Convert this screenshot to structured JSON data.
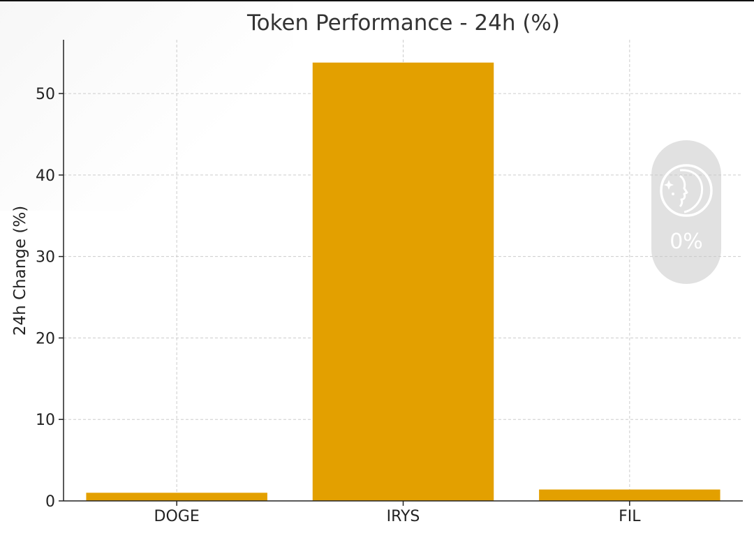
{
  "chart_data": {
    "type": "bar",
    "title": "Token Performance - 24h (%)",
    "xlabel": "",
    "ylabel": "24h Change (%)",
    "categories": [
      "DOGE",
      "IRYS",
      "FIL"
    ],
    "values": [
      1.0,
      53.8,
      1.4
    ],
    "ylim": [
      0,
      56.6
    ],
    "yticks": [
      0,
      10,
      20,
      30,
      40,
      50
    ],
    "grid": true,
    "bar_color": "#E3A000",
    "grid_color": "#cccccc",
    "axis_color": "#222222"
  },
  "widget": {
    "percent": "0%",
    "icon": "face-profile-icon"
  }
}
